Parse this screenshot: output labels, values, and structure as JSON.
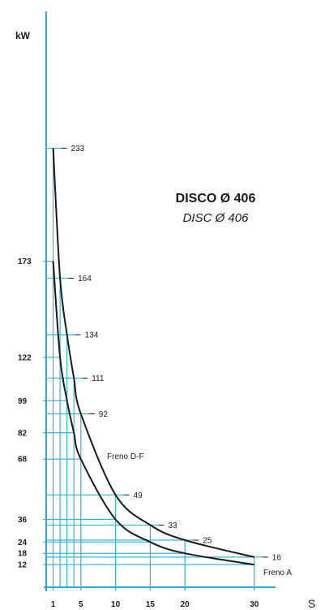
{
  "chart_data": {
    "type": "line",
    "title": "DISCO Ø 406",
    "subtitle": "DISC Ø 406",
    "xlabel": "S",
    "ylabel": "kW",
    "x_ticks": [
      1,
      5,
      10,
      15,
      20,
      30
    ],
    "y_ticks": [
      12,
      18,
      24,
      36,
      68,
      82,
      99,
      122,
      173
    ],
    "xlim": [
      0,
      36
    ],
    "ylim": [
      0,
      265
    ],
    "grid": true,
    "colors": {
      "axis": "#2aa8d8",
      "grid": "#35b3e2",
      "curve": "#1a1a1a",
      "text": "#1a1a1a"
    },
    "series": [
      {
        "name": "Freno D-F",
        "x": [
          1,
          2,
          3,
          4,
          5,
          10,
          15,
          20,
          30
        ],
        "y": [
          233,
          164,
          134,
          111,
          92,
          49,
          33,
          25,
          16
        ]
      },
      {
        "name": "Freno A",
        "x": [
          1,
          2,
          3,
          4,
          5,
          10,
          15,
          20,
          30
        ],
        "y": [
          173,
          122,
          99,
          82,
          68,
          36,
          24,
          18,
          12
        ]
      }
    ],
    "value_labels": [
      {
        "x": 1,
        "y": 233,
        "text": "233"
      },
      {
        "x": 2,
        "y": 164,
        "text": "164"
      },
      {
        "x": 3,
        "y": 134,
        "text": "134"
      },
      {
        "x": 4,
        "y": 111,
        "text": "111"
      },
      {
        "x": 5,
        "y": 92,
        "text": "92"
      },
      {
        "x": 10,
        "y": 49,
        "text": "49"
      },
      {
        "x": 15,
        "y": 33,
        "text": "33"
      },
      {
        "x": 20,
        "y": 25,
        "text": "25"
      },
      {
        "x": 30,
        "y": 16,
        "text": "16"
      }
    ]
  }
}
